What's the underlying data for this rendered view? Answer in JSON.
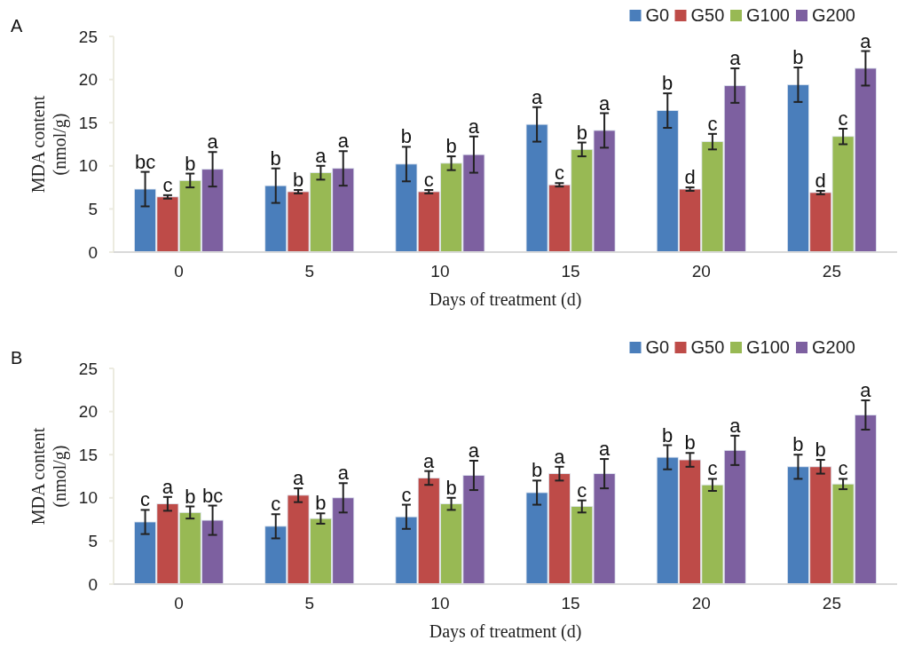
{
  "chart_data": [
    {
      "type": "bar",
      "title": "A",
      "xlabel": "Days of treatment (d)",
      "ylabel": "MDA content\n(nmol/g)",
      "categories": [
        "0",
        "5",
        "10",
        "15",
        "20",
        "25"
      ],
      "ylim": [
        0,
        25
      ],
      "yticks": [
        0,
        5,
        10,
        15,
        20,
        25
      ],
      "grid": false,
      "legend": "top right",
      "series": [
        {
          "name": "G0",
          "color": "#4a7ebb",
          "values": [
            7.3,
            7.7,
            10.2,
            14.8,
            16.4,
            19.4
          ],
          "errors": [
            2.0,
            2.0,
            2.0,
            2.0,
            2.0,
            2.0
          ],
          "value_labels": [
            "bc",
            "b",
            "b",
            "a",
            "b",
            "b"
          ]
        },
        {
          "name": "G50",
          "color": "#be4b48",
          "values": [
            6.4,
            7.0,
            7.0,
            7.8,
            7.3,
            6.9
          ],
          "errors": [
            0.2,
            0.2,
            0.2,
            0.2,
            0.2,
            0.2
          ],
          "value_labels": [
            "c",
            "b",
            "c",
            "c",
            "d",
            "d"
          ]
        },
        {
          "name": "G100",
          "color": "#98b954",
          "values": [
            8.3,
            9.2,
            10.3,
            11.9,
            12.8,
            13.4
          ],
          "errors": [
            0.8,
            0.8,
            0.8,
            0.8,
            0.9,
            0.9
          ],
          "value_labels": [
            "b",
            "a",
            "b",
            "b",
            "c",
            "c"
          ]
        },
        {
          "name": "G200",
          "color": "#7d60a0",
          "values": [
            9.6,
            9.7,
            11.3,
            14.1,
            19.3,
            21.3
          ],
          "errors": [
            2.0,
            2.0,
            2.1,
            2.0,
            2.0,
            2.0
          ],
          "value_labels": [
            "a",
            "a",
            "a",
            "a",
            "a",
            "a"
          ]
        }
      ]
    },
    {
      "type": "bar",
      "title": "B",
      "xlabel": "Days of treatment (d)",
      "ylabel": "MDA content\n(nmol/g)",
      "categories": [
        "0",
        "5",
        "10",
        "15",
        "20",
        "25"
      ],
      "ylim": [
        0,
        25
      ],
      "yticks": [
        0,
        5,
        10,
        15,
        20,
        25
      ],
      "grid": false,
      "legend": "top right",
      "series": [
        {
          "name": "G0",
          "color": "#4a7ebb",
          "values": [
            7.2,
            6.7,
            7.8,
            10.6,
            14.7,
            13.6
          ],
          "errors": [
            1.4,
            1.4,
            1.4,
            1.4,
            1.4,
            1.4
          ],
          "value_labels": [
            "c",
            "c",
            "c",
            "b",
            "b",
            "b"
          ]
        },
        {
          "name": "G50",
          "color": "#be4b48",
          "values": [
            9.3,
            10.3,
            12.3,
            12.8,
            14.4,
            13.6
          ],
          "errors": [
            0.8,
            0.8,
            0.8,
            0.8,
            0.8,
            0.8
          ],
          "value_labels": [
            "a",
            "a",
            "a",
            "a",
            "b",
            "b"
          ]
        },
        {
          "name": "G100",
          "color": "#98b954",
          "values": [
            8.3,
            7.6,
            9.3,
            9.0,
            11.5,
            11.6
          ],
          "errors": [
            0.7,
            0.6,
            0.7,
            0.7,
            0.7,
            0.6
          ],
          "value_labels": [
            "b",
            "b",
            "b",
            "c",
            "c",
            "c"
          ]
        },
        {
          "name": "G200",
          "color": "#7d60a0",
          "values": [
            7.4,
            10.0,
            12.6,
            12.8,
            15.5,
            19.6
          ],
          "errors": [
            1.7,
            1.7,
            1.7,
            1.7,
            1.7,
            1.7
          ],
          "value_labels": [
            "bc",
            "a",
            "a",
            "a",
            "a",
            "a"
          ]
        }
      ]
    }
  ]
}
